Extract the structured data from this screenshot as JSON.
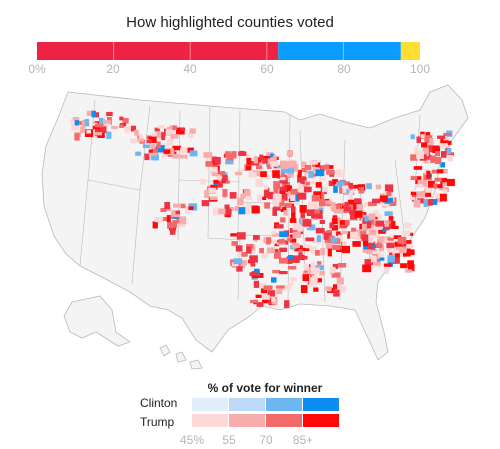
{
  "header": {
    "title": "How highlighted counties voted"
  },
  "vote_bar": {
    "segments": [
      {
        "party": "Trump",
        "share_pct": 63,
        "color": "#ee2244"
      },
      {
        "party": "Clinton",
        "share_pct": 32,
        "color": "#0a9dff"
      },
      {
        "party": "Other",
        "share_pct": 5,
        "color": "#ffdd33"
      }
    ],
    "ticks": [
      "0%",
      "20",
      "40",
      "60",
      "80",
      "100"
    ]
  },
  "legend": {
    "title": "% of vote for winner",
    "rows": [
      {
        "label": "Clinton",
        "colors": [
          "#e2eefa",
          "#bcdaf7",
          "#6cb7f2",
          "#0f8cf2"
        ]
      },
      {
        "label": "Trump",
        "colors": [
          "#fcd8d8",
          "#f8acac",
          "#f26a6a",
          "#ff0808"
        ]
      }
    ],
    "ticks": [
      "45%",
      "55",
      "70",
      "85+"
    ]
  },
  "map": {
    "land_color": "#f4f4f4",
    "border_color": "#b9b9b9",
    "highlight_colors": [
      "#fcd8d8",
      "#f8acac",
      "#f26a6a",
      "#ee3344",
      "#ff0808",
      "#6cb7f2",
      "#0f8cf2"
    ]
  }
}
